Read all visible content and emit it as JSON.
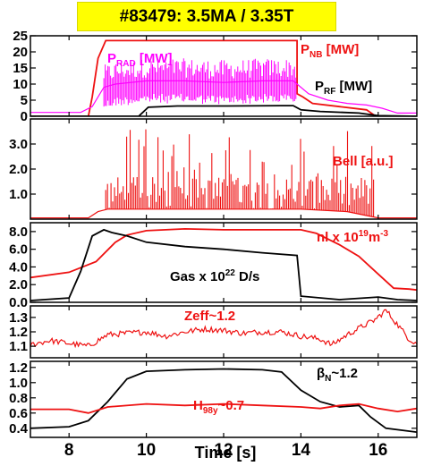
{
  "title": "#83479: 3.5MA / 3.35T",
  "colors": {
    "red": "#ee1111",
    "magenta": "#ff00ff",
    "black": "#000000",
    "title_bg": "#ffff00"
  },
  "chart_data": {
    "type": "line",
    "xlabel": "Time [s]",
    "xlim": [
      7,
      17
    ],
    "xticks": [
      8,
      10,
      12,
      14,
      16
    ],
    "panels": [
      {
        "ylim": [
          0,
          25
        ],
        "yticks": [
          0,
          5,
          10,
          15,
          20,
          25
        ],
        "series": [
          {
            "name": "P_NB [MW]",
            "color": "#ee1111",
            "points": [
              [
                7,
                0
              ],
              [
                8.5,
                0
              ],
              [
                8.6,
                6
              ],
              [
                8.75,
                18
              ],
              [
                8.95,
                23.5
              ],
              [
                13.9,
                23.5
              ],
              [
                13.9,
                7
              ],
              [
                14.05,
                6
              ],
              [
                14.3,
                4
              ],
              [
                15,
                3
              ],
              [
                15.7,
                2
              ],
              [
                15.9,
                0.3
              ],
              [
                16,
                -1
              ],
              [
                17,
                -1
              ]
            ]
          },
          {
            "name": "P_RAD [MW]",
            "color": "#ff00ff",
            "points": [
              [
                7,
                1.2
              ],
              [
                8.3,
                1.2
              ],
              [
                8.6,
                3
              ],
              [
                8.9,
                9
              ],
              [
                9.2,
                10
              ],
              [
                10,
                11
              ],
              [
                11,
                11
              ],
              [
                12,
                10.5
              ],
              [
                13,
                11
              ],
              [
                13.8,
                11
              ],
              [
                14.2,
                7
              ],
              [
                14.7,
                5
              ],
              [
                15.2,
                4
              ],
              [
                15.7,
                3.5
              ],
              [
                16.1,
                2.5
              ],
              [
                16.5,
                1
              ],
              [
                17,
                1
              ]
            ]
          },
          {
            "name": "P_RF [MW]",
            "color": "#000000",
            "points": [
              [
                7,
                0
              ],
              [
                9.8,
                0
              ],
              [
                10.05,
                2.8
              ],
              [
                10.8,
                3.2
              ],
              [
                12,
                3.2
              ],
              [
                13.5,
                3.3
              ],
              [
                13.8,
                3.3
              ],
              [
                14,
                2
              ],
              [
                14.5,
                1.5
              ],
              [
                15.5,
                1
              ],
              [
                16,
                0.2
              ],
              [
                17,
                0
              ]
            ]
          }
        ],
        "labels": [
          {
            "text": "P",
            "sub": "NB",
            "suffix": " [MW]",
            "color": "#ee1111"
          },
          {
            "text": "P",
            "sub": "RAD",
            "suffix": " [MW]",
            "color": "#ff00ff"
          },
          {
            "text": "P",
            "sub": "RF",
            "suffix": " [MW]",
            "color": "#000000"
          }
        ]
      },
      {
        "ylim": [
          0,
          4
        ],
        "yticks": [
          1.0,
          2.0,
          3.0
        ],
        "series": [
          {
            "name": "Bell [a.u.]",
            "color": "#ee1111",
            "points": [
              [
                7,
                0.05
              ],
              [
                8.5,
                0.05
              ],
              [
                8.75,
                0.3
              ],
              [
                9.0,
                0.4
              ],
              [
                14,
                0.4
              ],
              [
                15.2,
                0.3
              ],
              [
                16,
                0.05
              ],
              [
                17,
                0.05
              ]
            ],
            "spikes": {
              "from": 8.95,
              "to": 15.9,
              "max": 3.6
            }
          }
        ],
        "labels": [
          {
            "text": "Bell [a.u.]",
            "color": "#ee1111"
          }
        ]
      },
      {
        "ylim": [
          0,
          9
        ],
        "yticks": [
          0.0,
          2.0,
          4.0,
          6.0,
          8.0
        ],
        "series": [
          {
            "name": "nl x 10^19 m^-3",
            "color": "#ee1111",
            "points": [
              [
                7,
                2.8
              ],
              [
                8,
                3.4
              ],
              [
                8.7,
                4.6
              ],
              [
                9.2,
                6.8
              ],
              [
                9.5,
                7.6
              ],
              [
                10,
                8.1
              ],
              [
                11,
                8.3
              ],
              [
                12,
                8.2
              ],
              [
                13,
                8.2
              ],
              [
                14,
                8.2
              ],
              [
                14.4,
                7.8
              ],
              [
                15,
                6.5
              ],
              [
                15.5,
                5.2
              ],
              [
                16,
                3.2
              ],
              [
                16.4,
                1.6
              ],
              [
                16.8,
                1.5
              ],
              [
                17,
                1.4
              ]
            ]
          },
          {
            "name": "Gas x 10^22 D/s",
            "color": "#000000",
            "points": [
              [
                7,
                0.2
              ],
              [
                8,
                0.5
              ],
              [
                8.3,
                3.5
              ],
              [
                8.6,
                7.5
              ],
              [
                8.9,
                8.2
              ],
              [
                9.1,
                7.9
              ],
              [
                9.5,
                7.5
              ],
              [
                10,
                6.8
              ],
              [
                11,
                6.3
              ],
              [
                12,
                6.0
              ],
              [
                13,
                5.6
              ],
              [
                13.9,
                5.3
              ],
              [
                14.0,
                0.7
              ],
              [
                15,
                0.3
              ],
              [
                16,
                0.6
              ],
              [
                16.5,
                0.3
              ],
              [
                17,
                0.2
              ]
            ]
          }
        ],
        "labels": [
          {
            "text": "nl x 10",
            "sup": "19",
            "suffix": "m",
            "sup2": "-3",
            "color": "#ee1111"
          },
          {
            "text": "Gas x 10",
            "sup": "22",
            "suffix": " D/s",
            "color": "#000000"
          }
        ]
      },
      {
        "ylim": [
          1.02,
          1.38
        ],
        "yticks": [
          1.1,
          1.2,
          1.3
        ],
        "series": [
          {
            "name": "Zeff~1.2",
            "color": "#ee1111",
            "points": [
              [
                7,
                1.11
              ],
              [
                7.5,
                1.14
              ],
              [
                8,
                1.12
              ],
              [
                8.5,
                1.1
              ],
              [
                9,
                1.18
              ],
              [
                9.5,
                1.19
              ],
              [
                10,
                1.2
              ],
              [
                10.5,
                1.17
              ],
              [
                11,
                1.2
              ],
              [
                11.5,
                1.22
              ],
              [
                12,
                1.21
              ],
              [
                12.5,
                1.19
              ],
              [
                13,
                1.2
              ],
              [
                13.5,
                1.2
              ],
              [
                14,
                1.17
              ],
              [
                14.5,
                1.15
              ],
              [
                14.8,
                1.11
              ],
              [
                15.2,
                1.18
              ],
              [
                15.6,
                1.24
              ],
              [
                15.9,
                1.28
              ],
              [
                16.2,
                1.35
              ],
              [
                16.5,
                1.25
              ],
              [
                16.8,
                1.15
              ],
              [
                17,
                1.12
              ]
            ],
            "noise": 0.02
          }
        ],
        "labels": [
          {
            "text": "Zeff~1.2",
            "color": "#ee1111"
          }
        ]
      },
      {
        "ylim": [
          0.28,
          1.28
        ],
        "yticks": [
          0.4,
          0.6,
          0.8,
          1.0,
          1.2
        ],
        "series": [
          {
            "name": "βN~1.2",
            "color": "#000000",
            "points": [
              [
                7,
                0.4
              ],
              [
                8,
                0.42
              ],
              [
                8.5,
                0.5
              ],
              [
                9,
                0.75
              ],
              [
                9.5,
                1.05
              ],
              [
                10,
                1.15
              ],
              [
                11,
                1.17
              ],
              [
                12,
                1.18
              ],
              [
                13,
                1.17
              ],
              [
                13.5,
                1.14
              ],
              [
                14,
                0.9
              ],
              [
                14.5,
                0.75
              ],
              [
                15,
                0.68
              ],
              [
                15.5,
                0.7
              ],
              [
                15.8,
                0.55
              ],
              [
                16.2,
                0.4
              ],
              [
                17,
                0.35
              ]
            ]
          },
          {
            "name": "H98y~0.7",
            "color": "#ee1111",
            "points": [
              [
                7,
                0.65
              ],
              [
                8,
                0.65
              ],
              [
                8.5,
                0.6
              ],
              [
                9,
                0.68
              ],
              [
                10,
                0.72
              ],
              [
                11,
                0.7
              ],
              [
                12,
                0.72
              ],
              [
                13,
                0.7
              ],
              [
                14,
                0.68
              ],
              [
                14.5,
                0.66
              ],
              [
                15,
                0.7
              ],
              [
                15.5,
                0.72
              ],
              [
                16,
                0.66
              ],
              [
                16.5,
                0.62
              ],
              [
                17,
                0.66
              ]
            ]
          }
        ],
        "labels": [
          {
            "text": "β",
            "sub": "N",
            "suffix": "~1.2",
            "color": "#000000"
          },
          {
            "text": "H",
            "sub": "98y",
            "suffix": "~0.7",
            "color": "#ee1111"
          }
        ]
      }
    ]
  }
}
